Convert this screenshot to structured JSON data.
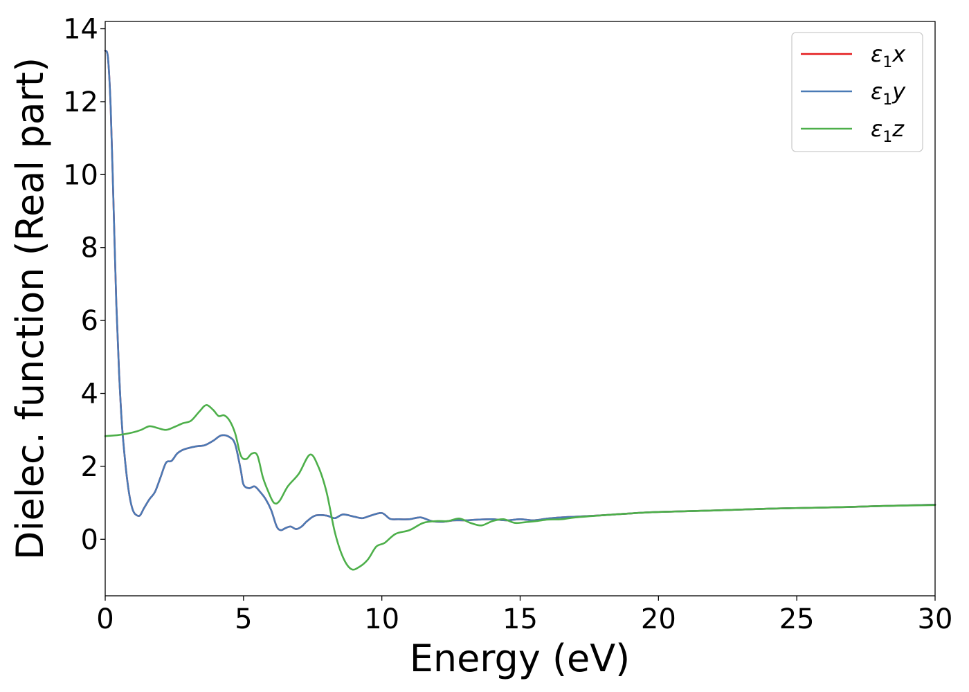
{
  "chart_data": {
    "type": "line",
    "xlabel": "Energy (eV)",
    "ylabel": "Dielec. function (Real part)",
    "xlim": [
      0,
      30
    ],
    "ylim": [
      -1.55,
      14.2
    ],
    "xticks": [
      0,
      5,
      10,
      15,
      20,
      25,
      30
    ],
    "yticks": [
      0,
      2,
      4,
      6,
      8,
      10,
      12,
      14
    ],
    "grid": false,
    "legend_position": "top-right",
    "series": [
      {
        "name": "ε₁x",
        "legend_base": "ε",
        "legend_sub": "1",
        "legend_suffix": "x",
        "color": "#e41a1c",
        "x": [
          0,
          0.1,
          0.2,
          0.3,
          0.4,
          0.5,
          0.6,
          0.7,
          0.8,
          0.9,
          1.0,
          1.1,
          1.25,
          1.4,
          1.6,
          1.8,
          2.0,
          2.2,
          2.4,
          2.6,
          2.8,
          3.0,
          3.3,
          3.6,
          3.9,
          4.2,
          4.5,
          4.7,
          4.9,
          5.0,
          5.2,
          5.4,
          5.6,
          5.8,
          6.0,
          6.2,
          6.35,
          6.5,
          6.7,
          6.9,
          7.1,
          7.3,
          7.6,
          8.0,
          8.3,
          8.6,
          9.0,
          9.3,
          9.6,
          10.0,
          10.3,
          10.6,
          11.0,
          11.4,
          11.8,
          12.2,
          12.6,
          13.0,
          13.5,
          14.0,
          14.5,
          15.0,
          15.5,
          16.0,
          16.5,
          17.0,
          18.0,
          19.0,
          20.0,
          22.0,
          24.0,
          26.0,
          28.0,
          30.0
        ],
        "y": [
          13.4,
          13.2,
          11.8,
          9.2,
          6.5,
          4.6,
          3.2,
          2.3,
          1.6,
          1.1,
          0.8,
          0.68,
          0.65,
          0.85,
          1.1,
          1.3,
          1.7,
          2.1,
          2.15,
          2.35,
          2.45,
          2.5,
          2.55,
          2.58,
          2.7,
          2.85,
          2.8,
          2.6,
          1.9,
          1.5,
          1.4,
          1.45,
          1.3,
          1.1,
          0.8,
          0.35,
          0.25,
          0.3,
          0.35,
          0.28,
          0.35,
          0.5,
          0.65,
          0.65,
          0.58,
          0.68,
          0.62,
          0.58,
          0.65,
          0.72,
          0.56,
          0.55,
          0.55,
          0.6,
          0.5,
          0.48,
          0.52,
          0.52,
          0.54,
          0.55,
          0.52,
          0.55,
          0.52,
          0.57,
          0.6,
          0.62,
          0.66,
          0.71,
          0.75,
          0.79,
          0.84,
          0.87,
          0.91,
          0.95
        ]
      },
      {
        "name": "ε₁y",
        "legend_base": "ε",
        "legend_sub": "1",
        "legend_suffix": "y",
        "color": "#4a7ab5",
        "x": [
          0,
          0.1,
          0.2,
          0.3,
          0.4,
          0.5,
          0.6,
          0.7,
          0.8,
          0.9,
          1.0,
          1.1,
          1.25,
          1.4,
          1.6,
          1.8,
          2.0,
          2.2,
          2.4,
          2.6,
          2.8,
          3.0,
          3.3,
          3.6,
          3.9,
          4.2,
          4.5,
          4.7,
          4.9,
          5.0,
          5.2,
          5.4,
          5.6,
          5.8,
          6.0,
          6.2,
          6.35,
          6.5,
          6.7,
          6.9,
          7.1,
          7.3,
          7.6,
          8.0,
          8.3,
          8.6,
          9.0,
          9.3,
          9.6,
          10.0,
          10.3,
          10.6,
          11.0,
          11.4,
          11.8,
          12.2,
          12.6,
          13.0,
          13.5,
          14.0,
          14.5,
          15.0,
          15.5,
          16.0,
          16.5,
          17.0,
          18.0,
          19.0,
          20.0,
          22.0,
          24.0,
          26.0,
          28.0,
          30.0
        ],
        "y": [
          13.4,
          13.2,
          11.8,
          9.2,
          6.5,
          4.6,
          3.2,
          2.3,
          1.6,
          1.1,
          0.8,
          0.68,
          0.65,
          0.85,
          1.1,
          1.3,
          1.7,
          2.1,
          2.15,
          2.35,
          2.45,
          2.5,
          2.55,
          2.58,
          2.7,
          2.85,
          2.8,
          2.6,
          1.9,
          1.5,
          1.4,
          1.45,
          1.3,
          1.1,
          0.8,
          0.35,
          0.25,
          0.3,
          0.35,
          0.28,
          0.35,
          0.5,
          0.65,
          0.65,
          0.58,
          0.68,
          0.62,
          0.58,
          0.65,
          0.72,
          0.56,
          0.55,
          0.55,
          0.6,
          0.5,
          0.48,
          0.52,
          0.52,
          0.54,
          0.55,
          0.52,
          0.55,
          0.52,
          0.57,
          0.6,
          0.62,
          0.66,
          0.71,
          0.75,
          0.79,
          0.84,
          0.87,
          0.91,
          0.95
        ]
      },
      {
        "name": "ε₁z",
        "legend_base": "ε",
        "legend_sub": "1",
        "legend_suffix": "z",
        "color": "#4daf4a",
        "x": [
          0,
          0.5,
          1.0,
          1.3,
          1.6,
          1.9,
          2.2,
          2.5,
          2.8,
          3.1,
          3.4,
          3.65,
          3.9,
          4.1,
          4.3,
          4.5,
          4.7,
          4.9,
          5.1,
          5.3,
          5.5,
          5.7,
          5.9,
          6.1,
          6.3,
          6.6,
          7.0,
          7.4,
          7.7,
          8.0,
          8.3,
          8.6,
          8.9,
          9.2,
          9.5,
          9.8,
          10.1,
          10.5,
          11.0,
          11.5,
          12.0,
          12.4,
          12.8,
          13.2,
          13.6,
          14.0,
          14.4,
          14.8,
          15.2,
          15.6,
          16.0,
          16.5,
          17.0,
          18.0,
          19.0,
          20.0,
          22.0,
          24.0,
          26.0,
          28.0,
          30.0
        ],
        "y": [
          2.83,
          2.86,
          2.93,
          3.0,
          3.1,
          3.05,
          3.0,
          3.08,
          3.18,
          3.25,
          3.5,
          3.68,
          3.55,
          3.38,
          3.4,
          3.25,
          2.9,
          2.3,
          2.2,
          2.35,
          2.3,
          1.7,
          1.3,
          1.0,
          1.05,
          1.45,
          1.8,
          2.32,
          2.0,
          1.3,
          0.2,
          -0.5,
          -0.82,
          -0.75,
          -0.55,
          -0.2,
          -0.1,
          0.15,
          0.25,
          0.45,
          0.5,
          0.5,
          0.57,
          0.45,
          0.38,
          0.5,
          0.55,
          0.45,
          0.47,
          0.5,
          0.54,
          0.55,
          0.6,
          0.66,
          0.71,
          0.75,
          0.79,
          0.84,
          0.87,
          0.91,
          0.94
        ]
      }
    ]
  }
}
